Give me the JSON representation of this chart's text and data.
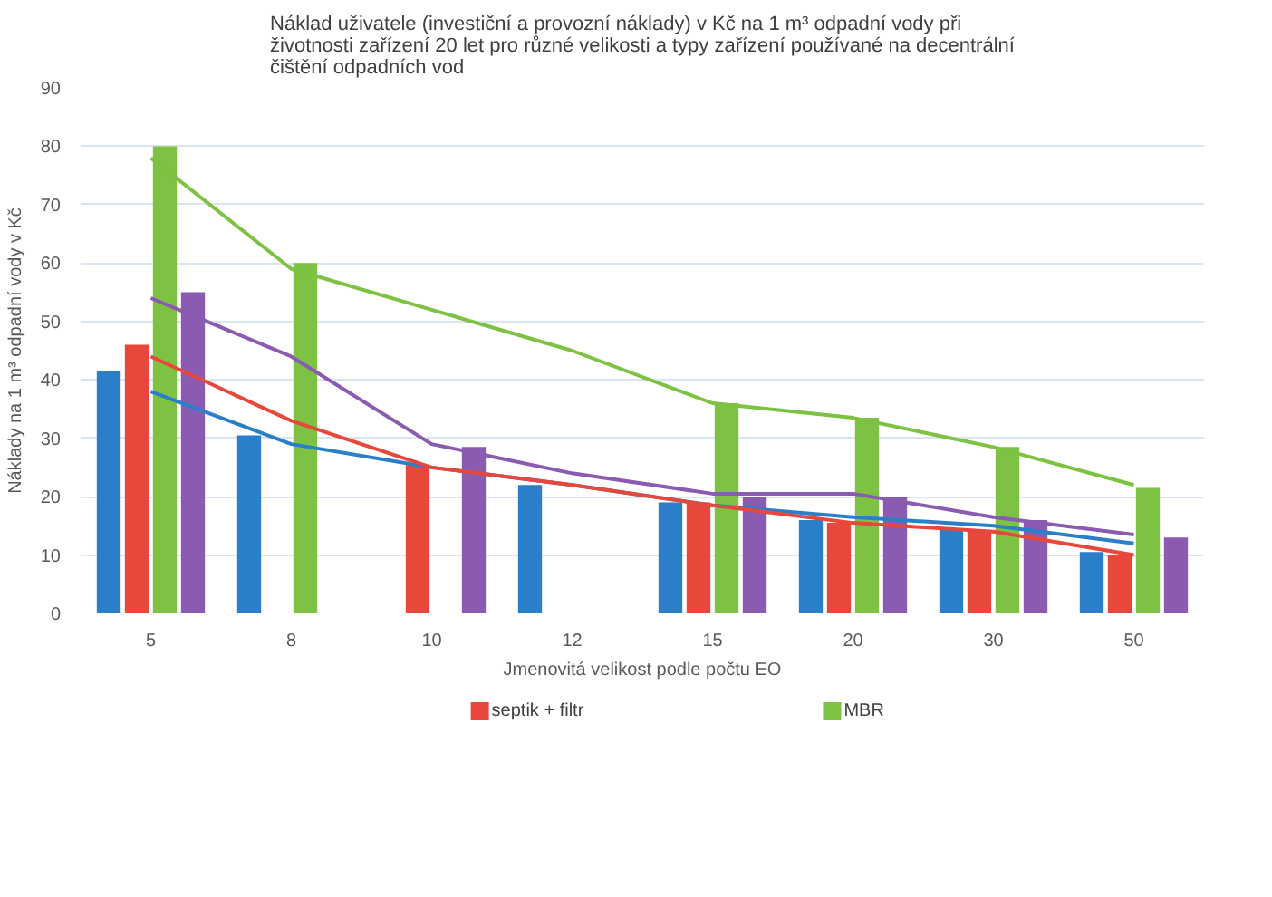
{
  "chart_data": {
    "type": "bar",
    "title": "Náklad uživatele (investiční a provozní náklady) v Kč na 1 m³ odpadní vody při životnosti zařízení 20 let pro různé velikosti a typy zařízení používané na decentrální čištění odpadních vod",
    "xlabel": "Jmenovitá velikost podle počtu EO",
    "ylabel": "Náklady na 1 m³ odpadní vody v Kč",
    "categories": [
      "5",
      "8",
      "10",
      "12",
      "15",
      "20",
      "30",
      "50"
    ],
    "ylim": [
      0,
      90
    ],
    "yticks": [
      0,
      10,
      20,
      30,
      40,
      50,
      60,
      70,
      80,
      90
    ],
    "grid": "y",
    "legend": "bottom",
    "series": [
      {
        "color": "#2a7fc8",
        "values": [
          41.5,
          30.5,
          null,
          22,
          19,
          16,
          14.5,
          10.5
        ]
      },
      {
        "name": "septik + filtr",
        "color": "#e8473c",
        "values": [
          46,
          null,
          25.5,
          null,
          19,
          15.5,
          14,
          10
        ]
      },
      {
        "name": "MBR",
        "color": "#7dc242",
        "values": [
          80,
          60,
          null,
          null,
          36,
          33.5,
          28.5,
          21.5
        ]
      },
      {
        "color": "#8a5bb0",
        "values": [
          55,
          null,
          28.5,
          null,
          20,
          20,
          16,
          13
        ]
      },
      {
        "type": "line",
        "color": "#2a7fc8",
        "values": [
          38,
          29,
          25,
          22,
          18.5,
          16.5,
          15,
          12
        ]
      },
      {
        "type": "line",
        "color": "#e8473c",
        "values": [
          44,
          33,
          25,
          22,
          18.5,
          15.5,
          14,
          10
        ]
      },
      {
        "type": "line",
        "color": "#7dc242",
        "values": [
          78,
          59,
          52,
          45,
          36,
          33.5,
          28.5,
          22
        ]
      },
      {
        "type": "line",
        "color": "#8a5bb0",
        "values": [
          54,
          44,
          29,
          24,
          20.5,
          20.5,
          16.5,
          13.5
        ]
      }
    ]
  }
}
